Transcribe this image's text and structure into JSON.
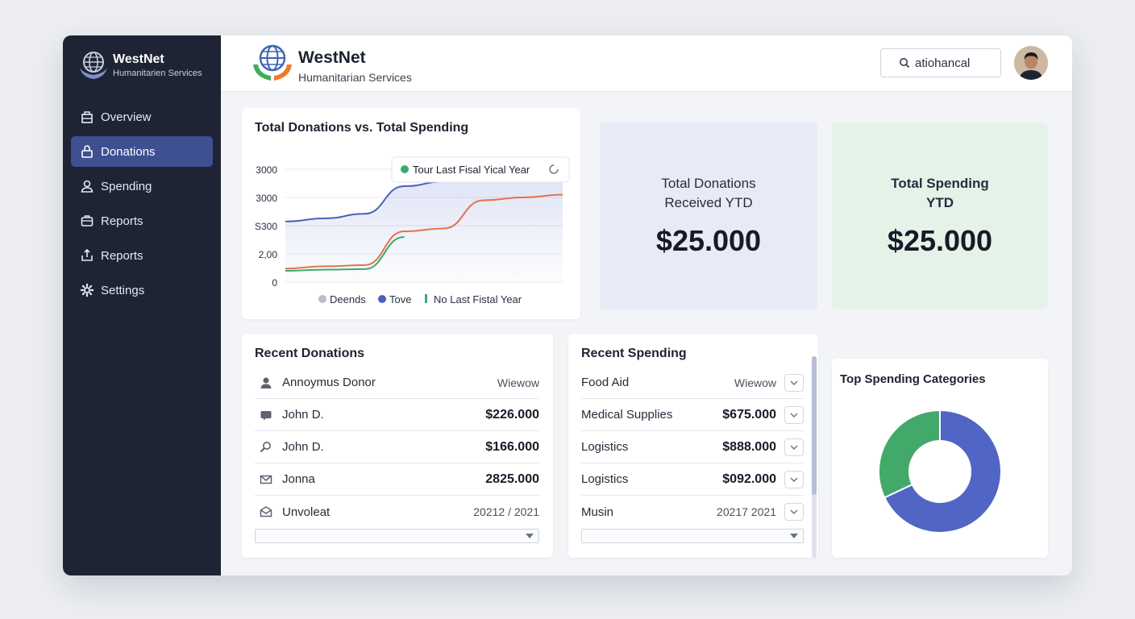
{
  "sidebar": {
    "brand_title": "WestNet",
    "brand_subtitle": "Humanitarien Services",
    "items": [
      {
        "label": "Overview",
        "icon": "building-icon"
      },
      {
        "label": "Donations",
        "icon": "lock-icon",
        "active": true
      },
      {
        "label": "Spending",
        "icon": "user-icon"
      },
      {
        "label": "Reports",
        "icon": "briefcase-icon"
      },
      {
        "label": "Reports",
        "icon": "share-icon"
      },
      {
        "label": "Settings",
        "icon": "gear-icon"
      }
    ]
  },
  "header": {
    "brand_title": "WestNet",
    "brand_subtitle": "Humanitarian Services",
    "search_value": "atiohancal"
  },
  "line_chart": {
    "title": "Total Donations vs. Total Spending",
    "tooltip": "Tour Last Fisal Yical Year",
    "legend": [
      "Deends",
      "Tove",
      "No Last Fistal Year"
    ],
    "colors": {
      "donations": "#4a61b8",
      "spending": "#e0744a",
      "last_year": "#3daa6e",
      "gray": "#b8bcc6"
    }
  },
  "chart_data": {
    "type": "line",
    "title": "Total Donations vs. Total Spending",
    "y_tick_labels": [
      "3000",
      "3000",
      "S300",
      "2,00",
      "0"
    ],
    "legend_placement": "bottom",
    "grid": true,
    "series": [
      {
        "name": "Tove",
        "color": "#4a61b8",
        "values": [
          2150,
          2260,
          2420,
          3400,
          3560,
          3660,
          3750,
          3850
        ]
      },
      {
        "name": "Deends",
        "color": "#e0744a",
        "values": [
          480,
          560,
          600,
          1800,
          1900,
          2900,
          3000,
          3100
        ]
      },
      {
        "name": "No Last Fistal Year",
        "color": "#3daa6e",
        "values": [
          400,
          440,
          460,
          1600
        ]
      }
    ]
  },
  "stats": {
    "donations": {
      "label": "Total Donations\nReceived YTD",
      "value": "$25.000"
    },
    "spending": {
      "label": "Total Spending\nYTD",
      "value": "$25.000"
    }
  },
  "recent_donations": {
    "title": "Recent Donations",
    "rows": [
      {
        "name": "Annoymus Donor",
        "amount": "Wiewow",
        "style": "muted",
        "icon": "user-icon"
      },
      {
        "name": "John D.",
        "amount": "$226.000",
        "style": "bold",
        "icon": "card-icon"
      },
      {
        "name": "John D.",
        "amount": "$166.000",
        "style": "bold",
        "icon": "search-user-icon"
      },
      {
        "name": "Jonna",
        "amount": "2825.000",
        "style": "bold",
        "icon": "mail-icon"
      },
      {
        "name": "Unvoleat",
        "amount": "20212 / 2021",
        "style": "muted",
        "icon": "open-mail-icon"
      }
    ]
  },
  "recent_spending": {
    "title": "Recent Spending",
    "rows": [
      {
        "name": "Food Aid",
        "amount": "Wiewow",
        "style": "muted"
      },
      {
        "name": "Medical Supplies",
        "amount": "$675.000",
        "style": "bold"
      },
      {
        "name": "Logistics",
        "amount": "$888.000",
        "style": "bold"
      },
      {
        "name": "Logistics",
        "amount": "$092.000",
        "style": "bold"
      },
      {
        "name": "Musin",
        "amount": "20217 2021",
        "style": "muted"
      }
    ]
  },
  "pie_chart": {
    "title": "Top Spending Categories",
    "type": "pie",
    "slices": [
      {
        "value": 68,
        "color": "#5065c4"
      },
      {
        "value": 32,
        "color": "#43a96b"
      }
    ]
  }
}
